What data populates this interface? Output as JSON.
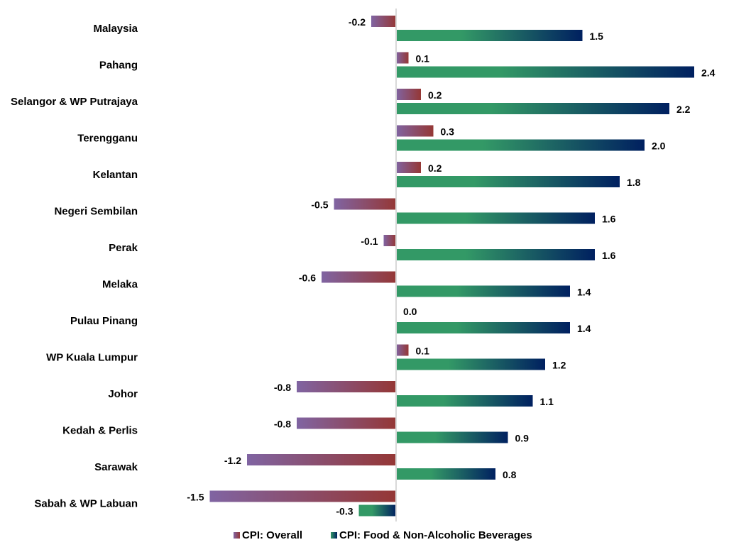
{
  "chart_data": {
    "type": "bar",
    "orientation": "horizontal",
    "title": "",
    "xlabel": "",
    "ylabel": "",
    "xlim": [
      -1.6,
      2.6
    ],
    "grid": false,
    "legend_position": "bottom",
    "categories": [
      "Malaysia",
      "Pahang",
      "Selangor & WP Putrajaya",
      "Terengganu",
      "Kelantan",
      "Negeri Sembilan",
      "Perak",
      "Melaka",
      "Pulau Pinang",
      "WP Kuala Lumpur",
      "Johor",
      "Kedah & Perlis",
      "Sarawak",
      "Sabah & WP Labuan"
    ],
    "series": [
      {
        "name": "CPI: Overall",
        "values": [
          -0.2,
          0.1,
          0.2,
          0.3,
          0.2,
          -0.5,
          -0.1,
          -0.6,
          0.0,
          0.1,
          -0.8,
          -0.8,
          -1.2,
          -1.5
        ],
        "labels": [
          "-0.2",
          "0.1",
          "0.2",
          "0.3",
          "0.2",
          "-0.5",
          "-0.1",
          "-0.6",
          "0.0",
          "0.1",
          "-0.8",
          "-0.8",
          "-1.2",
          "-1.5"
        ],
        "color_start": "#8064a2",
        "color_end": "#953735"
      },
      {
        "name": "CPI: Food & Non-Alcoholic Beverages",
        "values": [
          1.5,
          2.4,
          2.2,
          2.0,
          1.8,
          1.6,
          1.6,
          1.4,
          1.4,
          1.2,
          1.1,
          0.9,
          0.8,
          -0.3
        ],
        "labels": [
          "1.5",
          "2.4",
          "2.2",
          "2.0",
          "1.8",
          "1.6",
          "1.6",
          "1.4",
          "1.4",
          "1.2",
          "1.1",
          "0.9",
          "0.8",
          "-0.3"
        ],
        "color_start": "#339966",
        "color_end": "#002060"
      }
    ]
  }
}
